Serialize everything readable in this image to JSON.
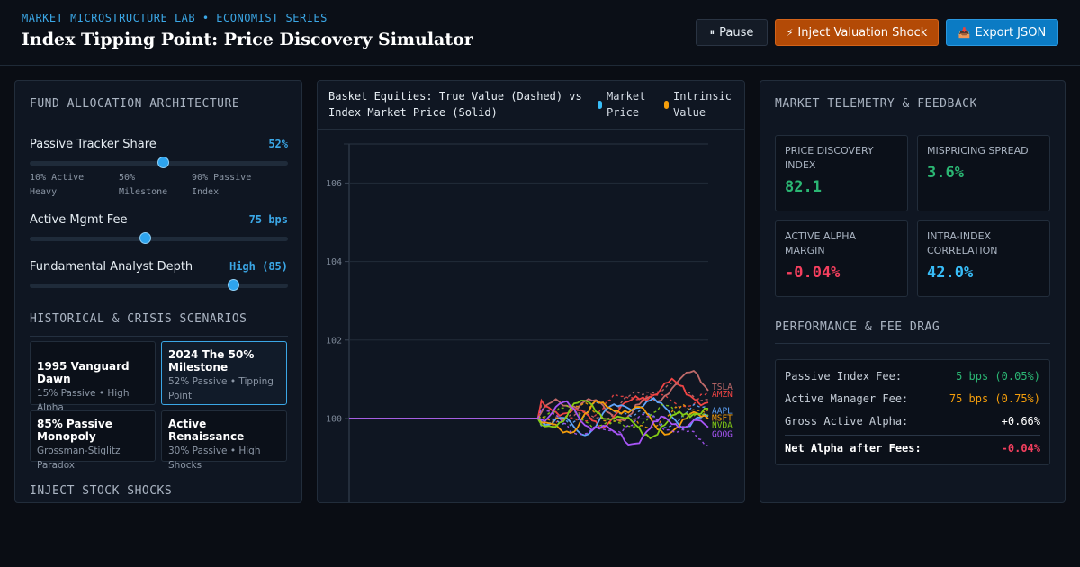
{
  "header": {
    "kicker": "MARKET MICROSTRUCTURE LAB • ECONOMIST SERIES",
    "title": "Index Tipping Point: Price Discovery Simulator",
    "buttons": {
      "pause": {
        "icon": "⏸",
        "label": "Pause"
      },
      "shock": {
        "icon": "⚡",
        "label": "Inject Valuation Shock"
      },
      "export": {
        "icon": "📥",
        "label": "Export JSON"
      }
    }
  },
  "allocation": {
    "title": "FUND ALLOCATION ARCHITECTURE",
    "passive_share": {
      "label": "Passive Tracker Share",
      "value": "52%",
      "level": 0.52,
      "ticks": [
        "10% Active Heavy",
        "50% Milestone",
        "90% Passive Index"
      ]
    },
    "mgmt_fee": {
      "label": "Active Mgmt Fee",
      "value": "75 bps",
      "level": 0.45
    },
    "analyst_depth": {
      "label": "Fundamental Analyst Depth",
      "value": "High (85)",
      "level": 0.79
    }
  },
  "scenarios": {
    "title": "HISTORICAL & CRISIS SCENARIOS",
    "items": [
      {
        "name": "1995 Vanguard Dawn",
        "sub": "15% Passive • High Alpha",
        "active": false
      },
      {
        "name": "2024 The 50% Milestone",
        "sub": "52% Passive • Tipping Point",
        "active": true
      },
      {
        "name": "85% Passive Monopoly",
        "sub": "Grossman-Stiglitz Paradox",
        "active": false
      },
      {
        "name": "Active Renaissance",
        "sub": "30% Passive • High Shocks",
        "active": false
      }
    ],
    "next_section": "INJECT STOCK SHOCKS"
  },
  "chart": {
    "title": "Basket Equities: True Value (Dashed) vs Index Market Price (Solid)",
    "legend": [
      {
        "label": "Market Price",
        "color": "#38bdf8"
      },
      {
        "label": "Intrinsic Value",
        "color": "#f59e0b"
      }
    ]
  },
  "chart_data": {
    "type": "line",
    "title": "Basket Equities: True Value (Dashed) vs Index Market Price (Solid)",
    "ylim": [
      98,
      107
    ],
    "yticks": [
      100,
      102,
      104,
      106
    ],
    "grid": true,
    "n_steps": 100,
    "flat_until": 52,
    "series": [
      {
        "name": "TSLA",
        "color": "#c06a6a",
        "end": 100.8
      },
      {
        "name": "AMZN",
        "color": "#ef4444",
        "end": 100.7
      },
      {
        "name": "AAPL",
        "color": "#60a5fa",
        "end": 100.2
      },
      {
        "name": "MSFT",
        "color": "#f59e0b",
        "end": 100.1
      },
      {
        "name": "NVDA",
        "color": "#84cc16",
        "end": 100.0
      },
      {
        "name": "GOOG",
        "color": "#a855f7",
        "end": 99.6
      }
    ]
  },
  "telemetry": {
    "title": "MARKET TELEMETRY & FEEDBACK",
    "tiles": [
      {
        "label": "PRICE DISCOVERY INDEX",
        "value": "82.1",
        "color": "#2bb673"
      },
      {
        "label": "MISPRICING SPREAD",
        "value": "3.6%",
        "color": "#2bb673"
      },
      {
        "label": "ACTIVE ALPHA MARGIN",
        "value": "-0.04%",
        "color": "#f43f5e"
      },
      {
        "label": "INTRA-INDEX CORRELATION",
        "value": "42.0%",
        "color": "#38bdf8"
      }
    ]
  },
  "performance": {
    "title": "PERFORMANCE & FEE DRAG",
    "rows": [
      {
        "k": "Passive Index Fee:",
        "v": "5 bps (0.05%)",
        "color": "#2bb673"
      },
      {
        "k": "Active Manager Fee:",
        "v": "75 bps (0.75%)",
        "color": "#f59e0b"
      },
      {
        "k": "Gross Active Alpha:",
        "v": "+0.66%",
        "color": "#ffffff"
      }
    ],
    "net": {
      "k": "Net Alpha after Fees:",
      "v": "-0.04%",
      "color": "#f43f5e"
    }
  }
}
